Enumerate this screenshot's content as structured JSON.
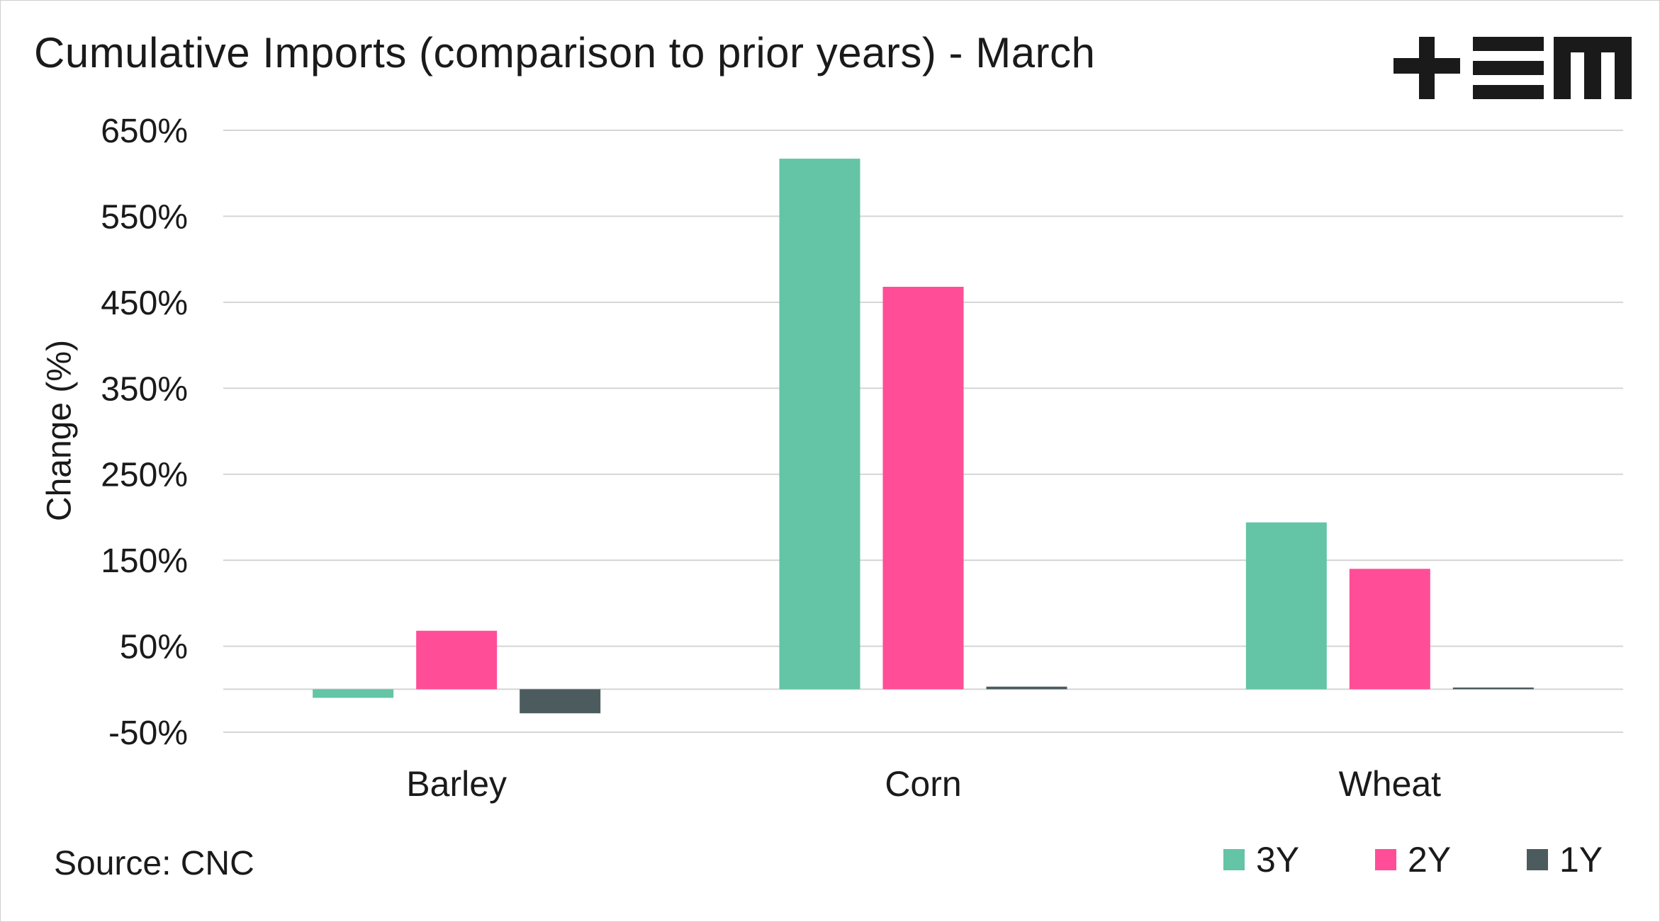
{
  "title": "Cumulative Imports (comparison to prior years) - March",
  "source": "Source: CNC",
  "logo_text": "+EM",
  "colors": {
    "3Y": "#63c5a5",
    "2Y": "#ff4e97",
    "1Y": "#4c5c5e",
    "grid": "#d5d5d5",
    "text": "#1a1a1a"
  },
  "chart_data": {
    "type": "bar",
    "categories": [
      "Barley",
      "Corn",
      "Wheat"
    ],
    "series": [
      {
        "name": "3Y",
        "values": [
          -10,
          617,
          194
        ]
      },
      {
        "name": "2Y",
        "values": [
          68,
          468,
          140
        ]
      },
      {
        "name": "1Y",
        "values": [
          -28,
          3,
          2
        ]
      }
    ],
    "ylabel": "Change (%)",
    "xlabel": "",
    "ylim": [
      -50,
      650
    ],
    "yticks": [
      650,
      550,
      450,
      350,
      250,
      150,
      50,
      -50
    ],
    "ytick_labels": [
      "650%",
      "550%",
      "450%",
      "350%",
      "250%",
      "150%",
      "50%",
      "-50%"
    ],
    "grid": true,
    "legend": "bottom-right"
  }
}
